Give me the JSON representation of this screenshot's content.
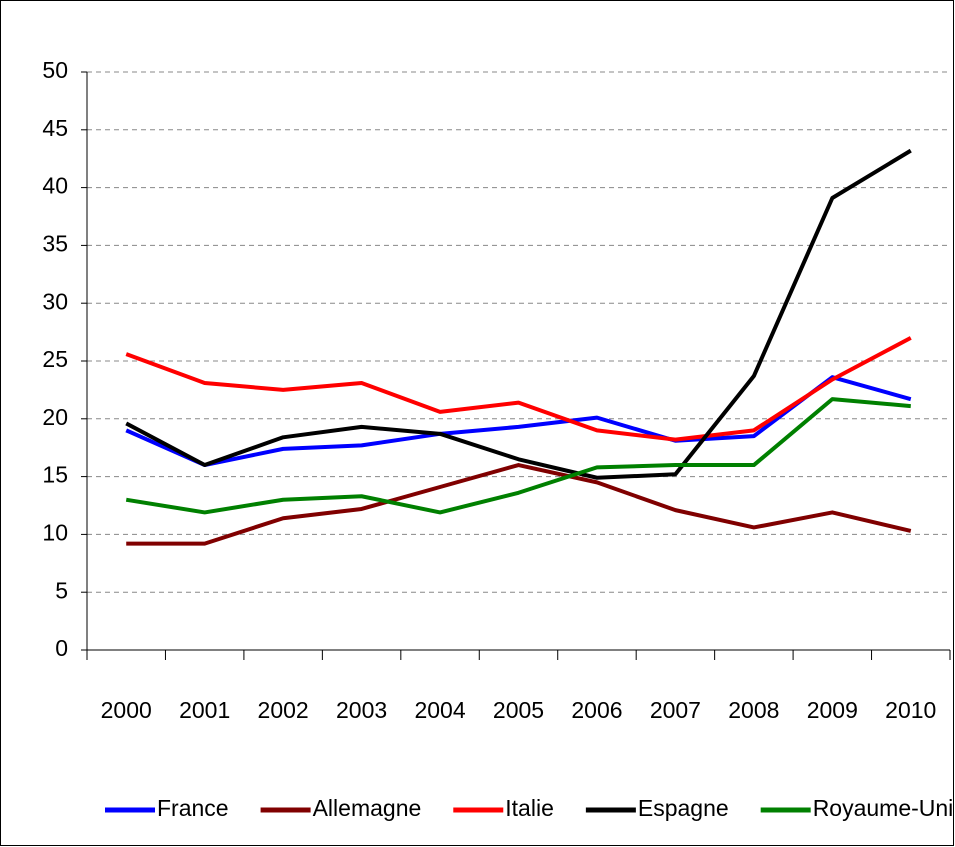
{
  "chart_data": {
    "type": "line",
    "categories": [
      "2000",
      "2001",
      "2002",
      "2003",
      "2004",
      "2005",
      "2006",
      "2007",
      "2008",
      "2009",
      "2010"
    ],
    "series": [
      {
        "name": "France",
        "color": "#0000ff",
        "values": [
          19,
          16,
          17.4,
          17.7,
          18.7,
          19.3,
          20.1,
          18.1,
          18.5,
          23.6,
          21.7
        ]
      },
      {
        "name": "Allemagne",
        "color": "#800000",
        "values": [
          9.2,
          9.2,
          11.4,
          12.2,
          14.1,
          16,
          14.5,
          12.1,
          10.6,
          11.9,
          10.3
        ]
      },
      {
        "name": "Italie",
        "color": "#ff0000",
        "values": [
          25.6,
          23.1,
          22.5,
          23.1,
          20.6,
          21.4,
          19,
          18.2,
          19,
          23.4,
          27
        ]
      },
      {
        "name": "Espagne",
        "color": "#000000",
        "values": [
          19.6,
          16,
          18.4,
          19.3,
          18.7,
          16.5,
          14.9,
          15.2,
          23.7,
          39.1,
          43.2
        ]
      },
      {
        "name": "Royaume-Uni",
        "color": "#008000",
        "values": [
          13,
          11.9,
          13,
          13.3,
          11.9,
          13.6,
          15.8,
          16,
          16,
          21.7,
          21.1
        ]
      }
    ],
    "ylim": [
      0,
      50
    ],
    "yticks": [
      0,
      5,
      10,
      15,
      20,
      25,
      30,
      35,
      40,
      45,
      50
    ],
    "grid": true,
    "legend": "bottom"
  }
}
